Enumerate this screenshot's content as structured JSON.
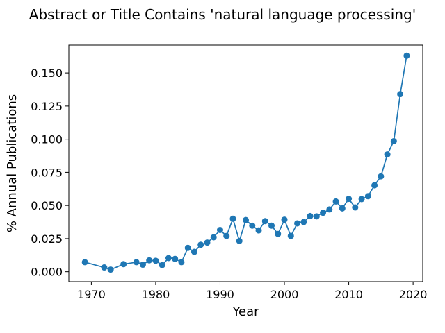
{
  "chart_data": {
    "type": "line",
    "title": "Abstract or Title Contains 'natural language processing'",
    "xlabel": "Year",
    "ylabel": "% Annual Publications",
    "xlim": [
      1966.5,
      2021.5
    ],
    "ylim": [
      -0.0075,
      0.171
    ],
    "x_ticks": [
      1970,
      1980,
      1990,
      2000,
      2010,
      2020
    ],
    "y_ticks": [
      0.0,
      0.025,
      0.05,
      0.075,
      0.1,
      0.125,
      0.15
    ],
    "y_tick_labels": [
      "0.000",
      "0.025",
      "0.050",
      "0.075",
      "0.100",
      "0.125",
      "0.150"
    ],
    "grid": false,
    "series": [
      {
        "color": "#1f77b4",
        "marker": "circle",
        "x": [
          1969,
          1972,
          1973,
          1975,
          1977,
          1978,
          1979,
          1980,
          1981,
          1982,
          1983,
          1984,
          1985,
          1986,
          1987,
          1988,
          1989,
          1990,
          1991,
          1992,
          1993,
          1994,
          1995,
          1996,
          1997,
          1998,
          1999,
          2000,
          2001,
          2002,
          2003,
          2004,
          2005,
          2006,
          2007,
          2008,
          2009,
          2010,
          2011,
          2012,
          2013,
          2014,
          2015,
          2016,
          2017,
          2018,
          2019
        ],
        "y": [
          0.0072,
          0.0032,
          0.0016,
          0.0057,
          0.0072,
          0.0053,
          0.0086,
          0.0083,
          0.005,
          0.0103,
          0.0097,
          0.0072,
          0.018,
          0.015,
          0.0204,
          0.022,
          0.026,
          0.0315,
          0.027,
          0.04,
          0.0232,
          0.039,
          0.0348,
          0.0312,
          0.0382,
          0.0348,
          0.0285,
          0.0393,
          0.027,
          0.0365,
          0.0375,
          0.042,
          0.0418,
          0.0445,
          0.047,
          0.053,
          0.0478,
          0.055,
          0.0485,
          0.0548,
          0.057,
          0.0652,
          0.072,
          0.0885,
          0.0985,
          0.134,
          0.163
        ]
      }
    ]
  }
}
